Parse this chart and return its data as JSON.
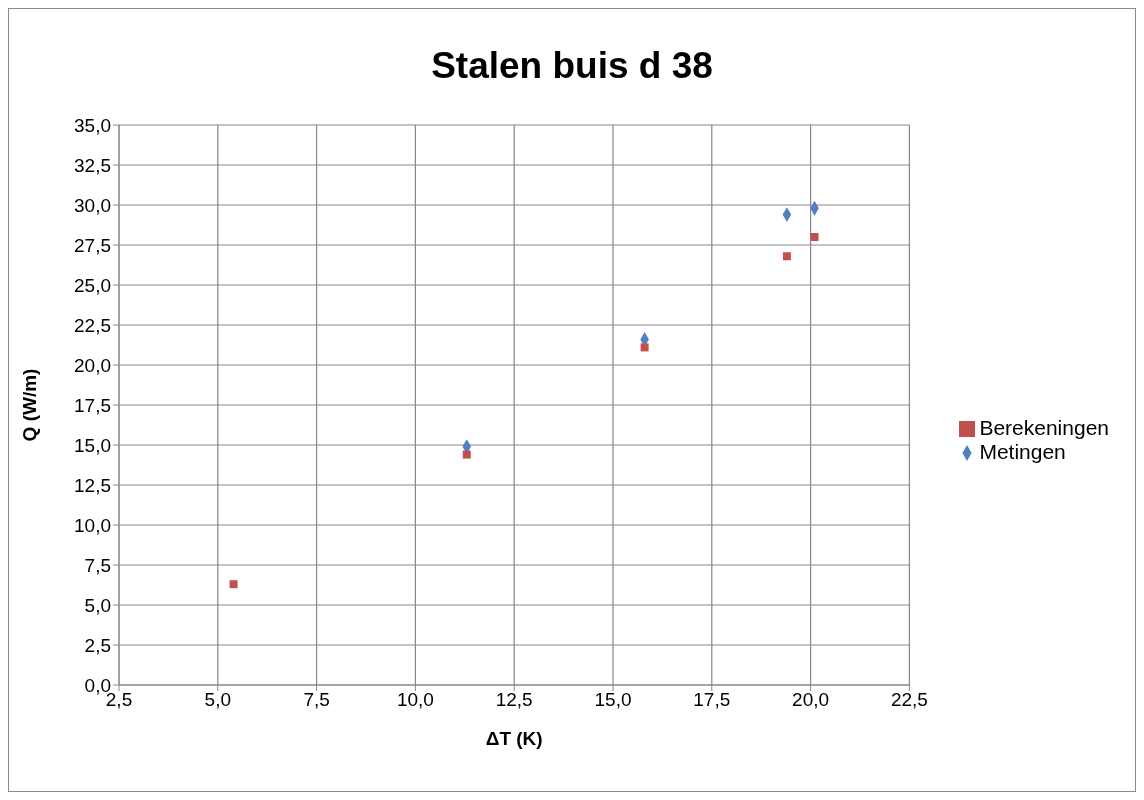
{
  "chart_data": {
    "type": "scatter",
    "title": "Stalen buis d 38",
    "xlabel": "ΔT (K)",
    "ylabel": "Q (W/m)",
    "x": [
      5.4,
      11.3,
      15.8,
      19.4,
      20.1
    ],
    "series": [
      {
        "name": "Metingen",
        "color": "#4f81bd",
        "marker": "diamond",
        "values": [
          null,
          14.9,
          21.6,
          29.4,
          29.8
        ]
      },
      {
        "name": "Berekeningen",
        "color": "#c0504d",
        "marker": "square",
        "values": [
          6.3,
          14.4,
          21.1,
          26.8,
          28.0
        ]
      }
    ],
    "xlim": [
      2.5,
      22.5
    ],
    "xticks": [
      {
        "value": 2.5,
        "label": "2,5"
      },
      {
        "value": 5,
        "label": "5,0"
      },
      {
        "value": 7.5,
        "label": "7,5"
      },
      {
        "value": 10,
        "label": "10,0"
      },
      {
        "value": 12.5,
        "label": "12,5"
      },
      {
        "value": 15,
        "label": "15,0"
      },
      {
        "value": 17.5,
        "label": "17,5"
      },
      {
        "value": 20,
        "label": "20,0"
      },
      {
        "value": 22.5,
        "label": "22,5"
      }
    ],
    "ylim": [
      0,
      35
    ],
    "yticks": [
      {
        "value": 0,
        "label": "0,0"
      },
      {
        "value": 2.5,
        "label": "2,5"
      },
      {
        "value": 5,
        "label": "5,0"
      },
      {
        "value": 7.5,
        "label": "7,5"
      },
      {
        "value": 10,
        "label": "10,0"
      },
      {
        "value": 12.5,
        "label": "12,5"
      },
      {
        "value": 15,
        "label": "15,0"
      },
      {
        "value": 17.5,
        "label": "17,5"
      },
      {
        "value": 20,
        "label": "20,0"
      },
      {
        "value": 22.5,
        "label": "22,5"
      },
      {
        "value": 25,
        "label": "25,0"
      },
      {
        "value": 27.5,
        "label": "27,5"
      },
      {
        "value": 30,
        "label": "30,0"
      },
      {
        "value": 32.5,
        "label": "32,5"
      },
      {
        "value": 35,
        "label": "35,0"
      }
    ],
    "grid": true,
    "legend": "right"
  }
}
